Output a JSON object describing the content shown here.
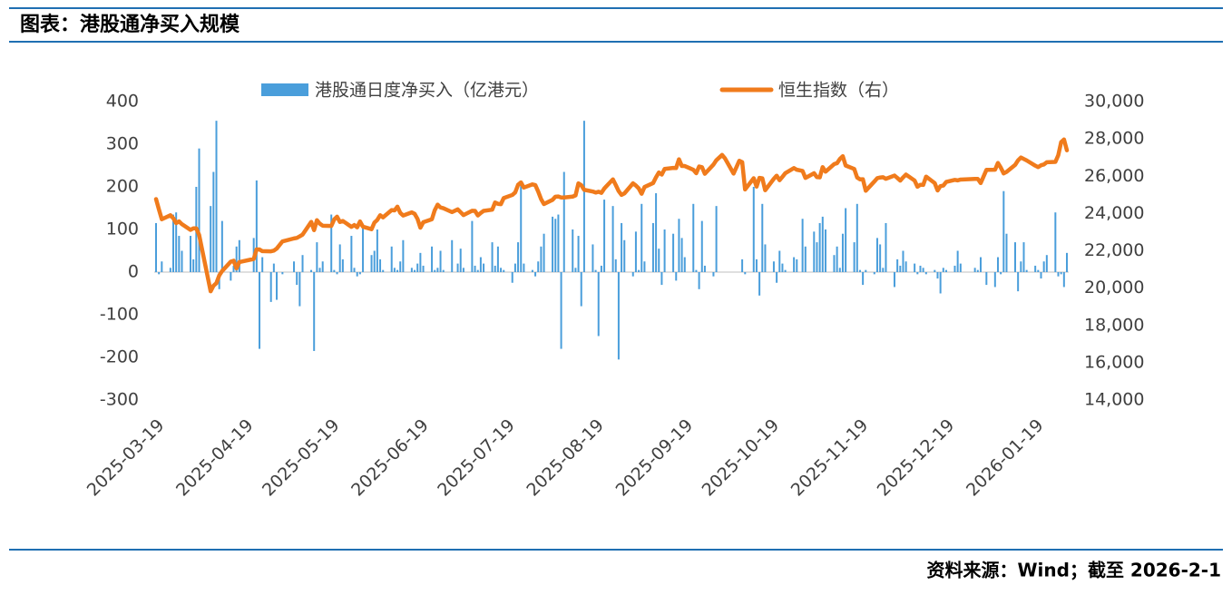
{
  "chart_data": {
    "type": "combo",
    "title": "图表：港股通净买入规模",
    "source": "资料来源：Wind；截至 2026-2-1",
    "x": [
      "2025-03-19",
      "2025-03-20",
      "2025-03-21",
      "2025-03-24",
      "2025-03-25",
      "2025-03-26",
      "2025-03-27",
      "2025-03-28",
      "2025-03-31",
      "2025-04-01",
      "2025-04-02",
      "2025-04-03",
      "2025-04-07",
      "2025-04-08",
      "2025-04-09",
      "2025-04-10",
      "2025-04-11",
      "2025-04-14",
      "2025-04-15",
      "2025-04-16",
      "2025-04-17",
      "2025-04-22",
      "2025-04-23",
      "2025-04-24",
      "2025-04-25",
      "2025-04-28",
      "2025-04-29",
      "2025-04-30",
      "2025-05-02",
      "2025-05-06",
      "2025-05-07",
      "2025-05-08",
      "2025-05-09",
      "2025-05-12",
      "2025-05-13",
      "2025-05-14",
      "2025-05-15",
      "2025-05-16",
      "2025-05-19",
      "2025-05-20",
      "2025-05-21",
      "2025-05-22",
      "2025-05-23",
      "2025-05-26",
      "2025-05-27",
      "2025-05-28",
      "2025-05-29",
      "2025-05-30",
      "2025-06-02",
      "2025-06-03",
      "2025-06-04",
      "2025-06-05",
      "2025-06-06",
      "2025-06-09",
      "2025-06-10",
      "2025-06-11",
      "2025-06-12",
      "2025-06-13",
      "2025-06-16",
      "2025-06-17",
      "2025-06-18",
      "2025-06-19",
      "2025-06-20",
      "2025-06-23",
      "2025-06-24",
      "2025-06-25",
      "2025-06-26",
      "2025-06-27",
      "2025-06-30",
      "2025-07-02",
      "2025-07-03",
      "2025-07-04",
      "2025-07-07",
      "2025-07-08",
      "2025-07-09",
      "2025-07-10",
      "2025-07-11",
      "2025-07-14",
      "2025-07-15",
      "2025-07-16",
      "2025-07-17",
      "2025-07-18",
      "2025-07-21",
      "2025-07-22",
      "2025-07-23",
      "2025-07-24",
      "2025-07-25",
      "2025-07-28",
      "2025-07-29",
      "2025-07-30",
      "2025-07-31",
      "2025-08-01",
      "2025-08-04",
      "2025-08-05",
      "2025-08-06",
      "2025-08-07",
      "2025-08-08",
      "2025-08-11",
      "2025-08-12",
      "2025-08-13",
      "2025-08-14",
      "2025-08-15",
      "2025-08-18",
      "2025-08-19",
      "2025-08-20",
      "2025-08-21",
      "2025-08-22",
      "2025-08-25",
      "2025-08-26",
      "2025-08-27",
      "2025-08-28",
      "2025-08-29",
      "2025-09-01",
      "2025-09-02",
      "2025-09-03",
      "2025-09-04",
      "2025-09-05",
      "2025-09-08",
      "2025-09-09",
      "2025-09-10",
      "2025-09-11",
      "2025-09-12",
      "2025-09-15",
      "2025-09-16",
      "2025-09-17",
      "2025-09-18",
      "2025-09-19",
      "2025-09-22",
      "2025-09-23",
      "2025-09-24",
      "2025-09-25",
      "2025-09-26",
      "2025-09-29",
      "2025-09-30",
      "2025-10-02",
      "2025-10-03",
      "2025-10-06",
      "2025-10-08",
      "2025-10-09",
      "2025-10-10",
      "2025-10-13",
      "2025-10-14",
      "2025-10-15",
      "2025-10-16",
      "2025-10-17",
      "2025-10-20",
      "2025-10-21",
      "2025-10-22",
      "2025-10-23",
      "2025-10-24",
      "2025-10-27",
      "2025-10-28",
      "2025-10-30",
      "2025-10-31",
      "2025-11-03",
      "2025-11-04",
      "2025-11-05",
      "2025-11-06",
      "2025-11-07",
      "2025-11-10",
      "2025-11-11",
      "2025-11-12",
      "2025-11-13",
      "2025-11-14",
      "2025-11-17",
      "2025-11-18",
      "2025-11-19",
      "2025-11-20",
      "2025-11-21",
      "2025-11-24",
      "2025-11-25",
      "2025-11-26",
      "2025-11-27",
      "2025-11-28",
      "2025-12-01",
      "2025-12-02",
      "2025-12-03",
      "2025-12-04",
      "2025-12-05",
      "2025-12-08",
      "2025-12-09",
      "2025-12-10",
      "2025-12-11",
      "2025-12-12",
      "2025-12-15",
      "2025-12-16",
      "2025-12-17",
      "2025-12-18",
      "2025-12-19",
      "2025-12-22",
      "2025-12-23",
      "2025-12-24",
      "2025-12-29",
      "2025-12-30",
      "2025-12-31",
      "2026-01-02",
      "2026-01-05",
      "2026-01-06",
      "2026-01-07",
      "2026-01-08",
      "2026-01-09",
      "2026-01-12",
      "2026-01-13",
      "2026-01-14",
      "2026-01-15",
      "2026-01-16",
      "2026-01-19",
      "2026-01-20",
      "2026-01-21",
      "2026-01-22",
      "2026-01-23",
      "2026-01-26",
      "2026-01-27",
      "2026-01-28",
      "2026-01-29",
      "2026-01-30"
    ],
    "series": [
      {
        "name": "港股通日度净买入（亿港元）",
        "type": "bar",
        "color": "#4a9edb",
        "values": [
          115,
          -5,
          25,
          10,
          135,
          140,
          85,
          50,
          85,
          30,
          200,
          290,
          155,
          235,
          355,
          -40,
          120,
          -20,
          15,
          60,
          75,
          80,
          215,
          -180,
          35,
          -70,
          20,
          -65,
          -5,
          25,
          -30,
          -80,
          40,
          5,
          -185,
          70,
          10,
          25,
          135,
          5,
          -5,
          65,
          30,
          85,
          10,
          -10,
          -5,
          105,
          40,
          50,
          100,
          30,
          5,
          60,
          10,
          5,
          25,
          75,
          10,
          5,
          20,
          45,
          15,
          60,
          5,
          10,
          50,
          5,
          75,
          20,
          55,
          10,
          120,
          15,
          5,
          35,
          20,
          70,
          15,
          60,
          10,
          5,
          -25,
          20,
          70,
          205,
          20,
          5,
          -10,
          25,
          60,
          90,
          130,
          125,
          135,
          -180,
          235,
          100,
          10,
          85,
          -80,
          355,
          65,
          5,
          -150,
          15,
          170,
          155,
          30,
          -205,
          115,
          75,
          -10,
          95,
          5,
          160,
          25,
          115,
          185,
          55,
          -30,
          100,
          90,
          -20,
          125,
          80,
          35,
          160,
          5,
          -40,
          120,
          15,
          -10,
          155,
          null,
          null,
          null,
          null,
          30,
          -5,
          200,
          30,
          -55,
          160,
          65,
          25,
          -25,
          50,
          20,
          5,
          35,
          30,
          125,
          60,
          95,
          70,
          115,
          130,
          100,
          40,
          60,
          10,
          90,
          150,
          70,
          160,
          5,
          -30,
          5,
          -5,
          80,
          65,
          10,
          115,
          -35,
          30,
          15,
          50,
          25,
          20,
          -5,
          15,
          10,
          -5,
          5,
          -15,
          -50,
          10,
          5,
          15,
          50,
          20,
          10,
          5,
          35,
          -30,
          -35,
          35,
          -5,
          190,
          90,
          70,
          -45,
          25,
          70,
          5,
          15,
          5,
          -15,
          25,
          40,
          140,
          -10,
          -5,
          -35,
          45
        ]
      },
      {
        "name": "恒生指数（右）",
        "type": "line",
        "axis": "y2",
        "color": "#f07b1c",
        "values": [
          24771,
          24219,
          23690,
          23905,
          23745,
          23483,
          23578,
          23426,
          23120,
          23206,
          23202,
          22849,
          19828,
          20127,
          20264,
          20682,
          20915,
          21418,
          21467,
          21057,
          21395,
          21562,
          22072,
          22072,
          21980,
          21972,
          22008,
          22119,
          22504,
          22663,
          22691,
          22775,
          22868,
          23549,
          23108,
          23641,
          23453,
          23345,
          23332,
          23681,
          23827,
          23544,
          23601,
          23282,
          23381,
          23258,
          23573,
          23290,
          23158,
          23512,
          23655,
          23906,
          23792,
          24181,
          24163,
          24367,
          24035,
          23893,
          24061,
          23981,
          23711,
          23238,
          23530,
          23690,
          24177,
          24475,
          24325,
          24284,
          24072,
          24221,
          24069,
          23916,
          24148,
          24140,
          23892,
          24028,
          24140,
          24203,
          24590,
          24518,
          24499,
          24826,
          24994,
          25130,
          25538,
          25667,
          25388,
          25562,
          25524,
          25176,
          24773,
          24507,
          24733,
          24902,
          24910,
          24859,
          24858,
          24906,
          24970,
          25614,
          25519,
          25270,
          25177,
          25123,
          25166,
          25105,
          25339,
          25830,
          25525,
          25201,
          24999,
          25077,
          25617,
          25497,
          25343,
          25058,
          25418,
          25633,
          25938,
          26200,
          26086,
          26388,
          26446,
          26438,
          26908,
          26544,
          26545,
          26344,
          26159,
          26519,
          26485,
          26128,
          26623,
          26855,
          27141,
          26957,
          26140,
          26829,
          26752,
          25290,
          25889,
          25441,
          25910,
          25888,
          25247,
          25858,
          26027,
          25782,
          25967,
          26160,
          26434,
          26346,
          26282,
          25907,
          26158,
          25952,
          25936,
          26486,
          26242,
          26649,
          26696,
          26923,
          27073,
          26572,
          26384,
          25930,
          25830,
          25836,
          25220,
          25716,
          25894,
          25928,
          25946,
          25859,
          26034,
          25905,
          25761,
          25936,
          26085,
          25765,
          25435,
          25541,
          25530,
          25977,
          25629,
          25235,
          25469,
          25498,
          25691,
          25801,
          25774,
          25819,
          25854,
          25855,
          25631,
          26338,
          26347,
          26710,
          26458,
          26149,
          26231,
          26608,
          26848,
          26999,
          26924,
          26845,
          26563,
          26487,
          26585,
          26630,
          26749,
          26765,
          27126,
          27827,
          27968,
          27387
        ]
      }
    ],
    "xlim": [
      "2025-03-19",
      "2026-01-30"
    ],
    "xticks": [
      "2025-03-19",
      "2025-04-19",
      "2025-05-19",
      "2025-06-19",
      "2025-07-19",
      "2025-08-19",
      "2025-09-19",
      "2025-10-19",
      "2025-11-19",
      "2025-12-19",
      "2026-01-19"
    ],
    "ylim": [
      -300,
      400
    ],
    "yticks": [
      -300,
      -200,
      -100,
      0,
      100,
      200,
      300,
      400
    ],
    "y2lim": [
      14000,
      30000
    ],
    "y2ticks": [
      {
        "value": 14000,
        "label": "14,000"
      },
      {
        "value": 16000,
        "label": "16,000"
      },
      {
        "value": 18000,
        "label": "18,000"
      },
      {
        "value": 20000,
        "label": "20,000"
      },
      {
        "value": 22000,
        "label": "22,000"
      },
      {
        "value": 24000,
        "label": "24,000"
      },
      {
        "value": 26000,
        "label": "26,000"
      },
      {
        "value": 28000,
        "label": "28,000"
      },
      {
        "value": 30000,
        "label": "30,000"
      }
    ],
    "grid": false
  }
}
